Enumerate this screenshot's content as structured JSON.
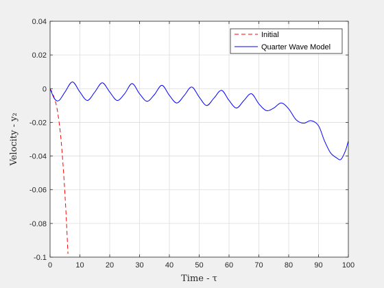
{
  "chart_data": {
    "type": "line",
    "title": "",
    "xlabel": "Time - τ",
    "ylabel": "Velocity - y₂",
    "xlim": [
      0,
      100
    ],
    "ylim": [
      -0.1,
      0.04
    ],
    "xticks": [
      0,
      10,
      20,
      30,
      40,
      50,
      60,
      70,
      80,
      90,
      100
    ],
    "yticks": [
      -0.1,
      -0.08,
      -0.06,
      -0.04,
      -0.02,
      0,
      0.02,
      0.04
    ],
    "xtick_labels": [
      "0",
      "10",
      "20",
      "30",
      "40",
      "50",
      "60",
      "70",
      "80",
      "90",
      "100"
    ],
    "ytick_labels": [
      "-0.1",
      "-0.08",
      "-0.06",
      "-0.04",
      "-0.02",
      "0",
      "0.02",
      "0.04"
    ],
    "grid": true,
    "legend_position": "top-right",
    "series": [
      {
        "name": "Initial",
        "color": "#ff0000",
        "style": "dashed",
        "x": [
          0,
          0.5,
          1,
          1.5,
          2,
          2.5,
          3,
          3.5,
          4,
          4.5,
          5,
          5.5,
          6
        ],
        "y": [
          0,
          -0.0015,
          -0.0035,
          -0.006,
          -0.009,
          -0.0135,
          -0.0195,
          -0.027,
          -0.037,
          -0.049,
          -0.063,
          -0.079,
          -0.098
        ]
      },
      {
        "name": "Quarter Wave Model",
        "color": "#0000ff",
        "style": "solid",
        "x": [
          0,
          1.5,
          3,
          5,
          7.5,
          10,
          12.5,
          15,
          17.5,
          20,
          22.5,
          25,
          27.5,
          30,
          32.5,
          35,
          37.5,
          40,
          42.5,
          45,
          47.5,
          50,
          52.5,
          55,
          57.5,
          60,
          62.5,
          65,
          67.5,
          70,
          72.5,
          75,
          77.5,
          80,
          82.5,
          85,
          87.5,
          90,
          92,
          94,
          96,
          97.5,
          99,
          100
        ],
        "y": [
          0,
          -0.006,
          -0.007,
          -0.002,
          0.004,
          -0.002,
          -0.007,
          -0.002,
          0.0035,
          -0.002,
          -0.007,
          -0.003,
          0.003,
          -0.003,
          -0.0075,
          -0.0035,
          0.002,
          -0.004,
          -0.0085,
          -0.004,
          0.001,
          -0.005,
          -0.01,
          -0.0055,
          -0.001,
          -0.007,
          -0.0115,
          -0.007,
          -0.003,
          -0.009,
          -0.013,
          -0.0115,
          -0.0085,
          -0.012,
          -0.0185,
          -0.0205,
          -0.019,
          -0.022,
          -0.031,
          -0.038,
          -0.041,
          -0.042,
          -0.037,
          -0.031
        ]
      }
    ]
  }
}
